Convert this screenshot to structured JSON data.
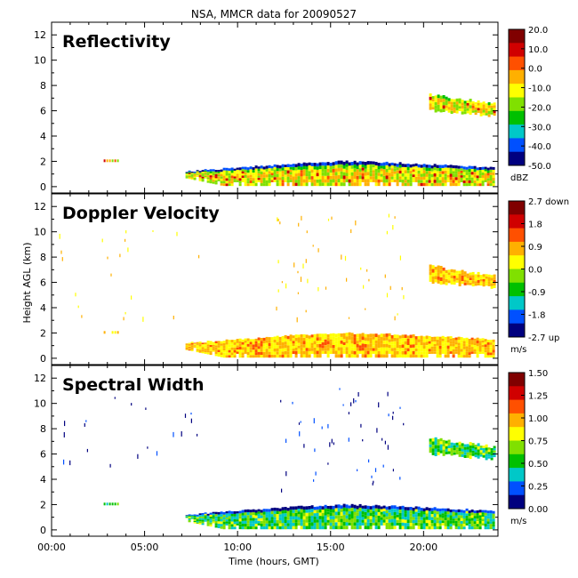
{
  "chart_data": {
    "type": "heatmap",
    "title": "NSA, MMCR data for 20090527",
    "xlabel": "Time (hours, GMT)",
    "ylabel": "Height AGL (km)",
    "x_ticks": [
      "00:00",
      "05:00",
      "10:00",
      "15:00",
      "20:00"
    ],
    "x_tick_values": [
      0,
      5,
      10,
      15,
      20
    ],
    "xlim": [
      0,
      24
    ],
    "y_ticks": [
      "0",
      "2",
      "4",
      "6",
      "8",
      "10",
      "12"
    ],
    "y_tick_values": [
      0,
      2,
      4,
      6,
      8,
      10,
      12
    ],
    "ylim": [
      -0.5,
      13
    ],
    "panels": [
      {
        "name": "Reflectivity",
        "colorbar_unit": "dBZ",
        "colorbar_ticks": [
          "20.0",
          "10.0",
          "0.0",
          "-10.0",
          "-20.0",
          "-30.0",
          "-40.0",
          "-50.0"
        ],
        "colorbar_range": [
          -50,
          20
        ],
        "colors": [
          "#00007f",
          "#0050ff",
          "#00c8c8",
          "#00c000",
          "#80e000",
          "#ffff00",
          "#ffb000",
          "#ff5000",
          "#d00000",
          "#800000"
        ],
        "lower_layer": {
          "t_start": 7.2,
          "t_end": 23.8,
          "top_km": [
            1.2,
            1.5,
            1.8,
            2.0,
            1.9,
            1.7,
            1.5
          ],
          "dominant": "green-yellow-orange"
        },
        "upper_layer": {
          "t_start": 20.3,
          "t_end": 23.8,
          "base_km": 5.6,
          "top_km": 7.3
        },
        "isolated_echo": {
          "t_start": 2.8,
          "t_end": 3.6,
          "height_km": 2.0
        }
      },
      {
        "name": "Doppler Velocity",
        "colorbar_unit": "m/s",
        "colorbar_ticks": [
          "2.7 down",
          "1.8",
          "0.9",
          "0.0",
          "-0.9",
          "-1.8",
          "-2.7 up"
        ],
        "colorbar_range": [
          -2.7,
          2.7
        ],
        "colors": [
          "#00007f",
          "#0050ff",
          "#00c8c8",
          "#00c000",
          "#80e000",
          "#ffff00",
          "#ffb000",
          "#ff5000",
          "#d00000",
          "#800000"
        ],
        "lower_layer": {
          "t_start": 7.2,
          "t_end": 23.8,
          "top_km": [
            1.2,
            1.5,
            1.8,
            2.0,
            1.9,
            1.7,
            1.5
          ],
          "dominant": "yellow-orange"
        },
        "upper_layer": {
          "t_start": 20.3,
          "t_end": 23.8,
          "base_km": 5.6,
          "top_km": 7.3
        },
        "isolated_echo": {
          "t_start": 2.8,
          "t_end": 3.6,
          "height_km": 2.0
        }
      },
      {
        "name": "Spectral Width",
        "colorbar_unit": "m/s",
        "colorbar_ticks": [
          "1.50",
          "1.25",
          "1.00",
          "0.75",
          "0.50",
          "0.25",
          "0.00"
        ],
        "colorbar_range": [
          0.0,
          1.5
        ],
        "colors": [
          "#00007f",
          "#0050ff",
          "#00c8c8",
          "#00c000",
          "#80e000",
          "#ffff00",
          "#ffb000",
          "#ff5000",
          "#d00000",
          "#800000"
        ],
        "lower_layer": {
          "t_start": 7.2,
          "t_end": 23.8,
          "top_km": [
            1.2,
            1.5,
            1.8,
            2.0,
            1.9,
            1.7,
            1.5
          ],
          "dominant": "blue-green"
        },
        "upper_layer": {
          "t_start": 20.3,
          "t_end": 23.8,
          "base_km": 5.6,
          "top_km": 7.3
        },
        "isolated_echo": {
          "t_start": 2.8,
          "t_end": 3.6,
          "height_km": 2.0
        }
      }
    ]
  }
}
